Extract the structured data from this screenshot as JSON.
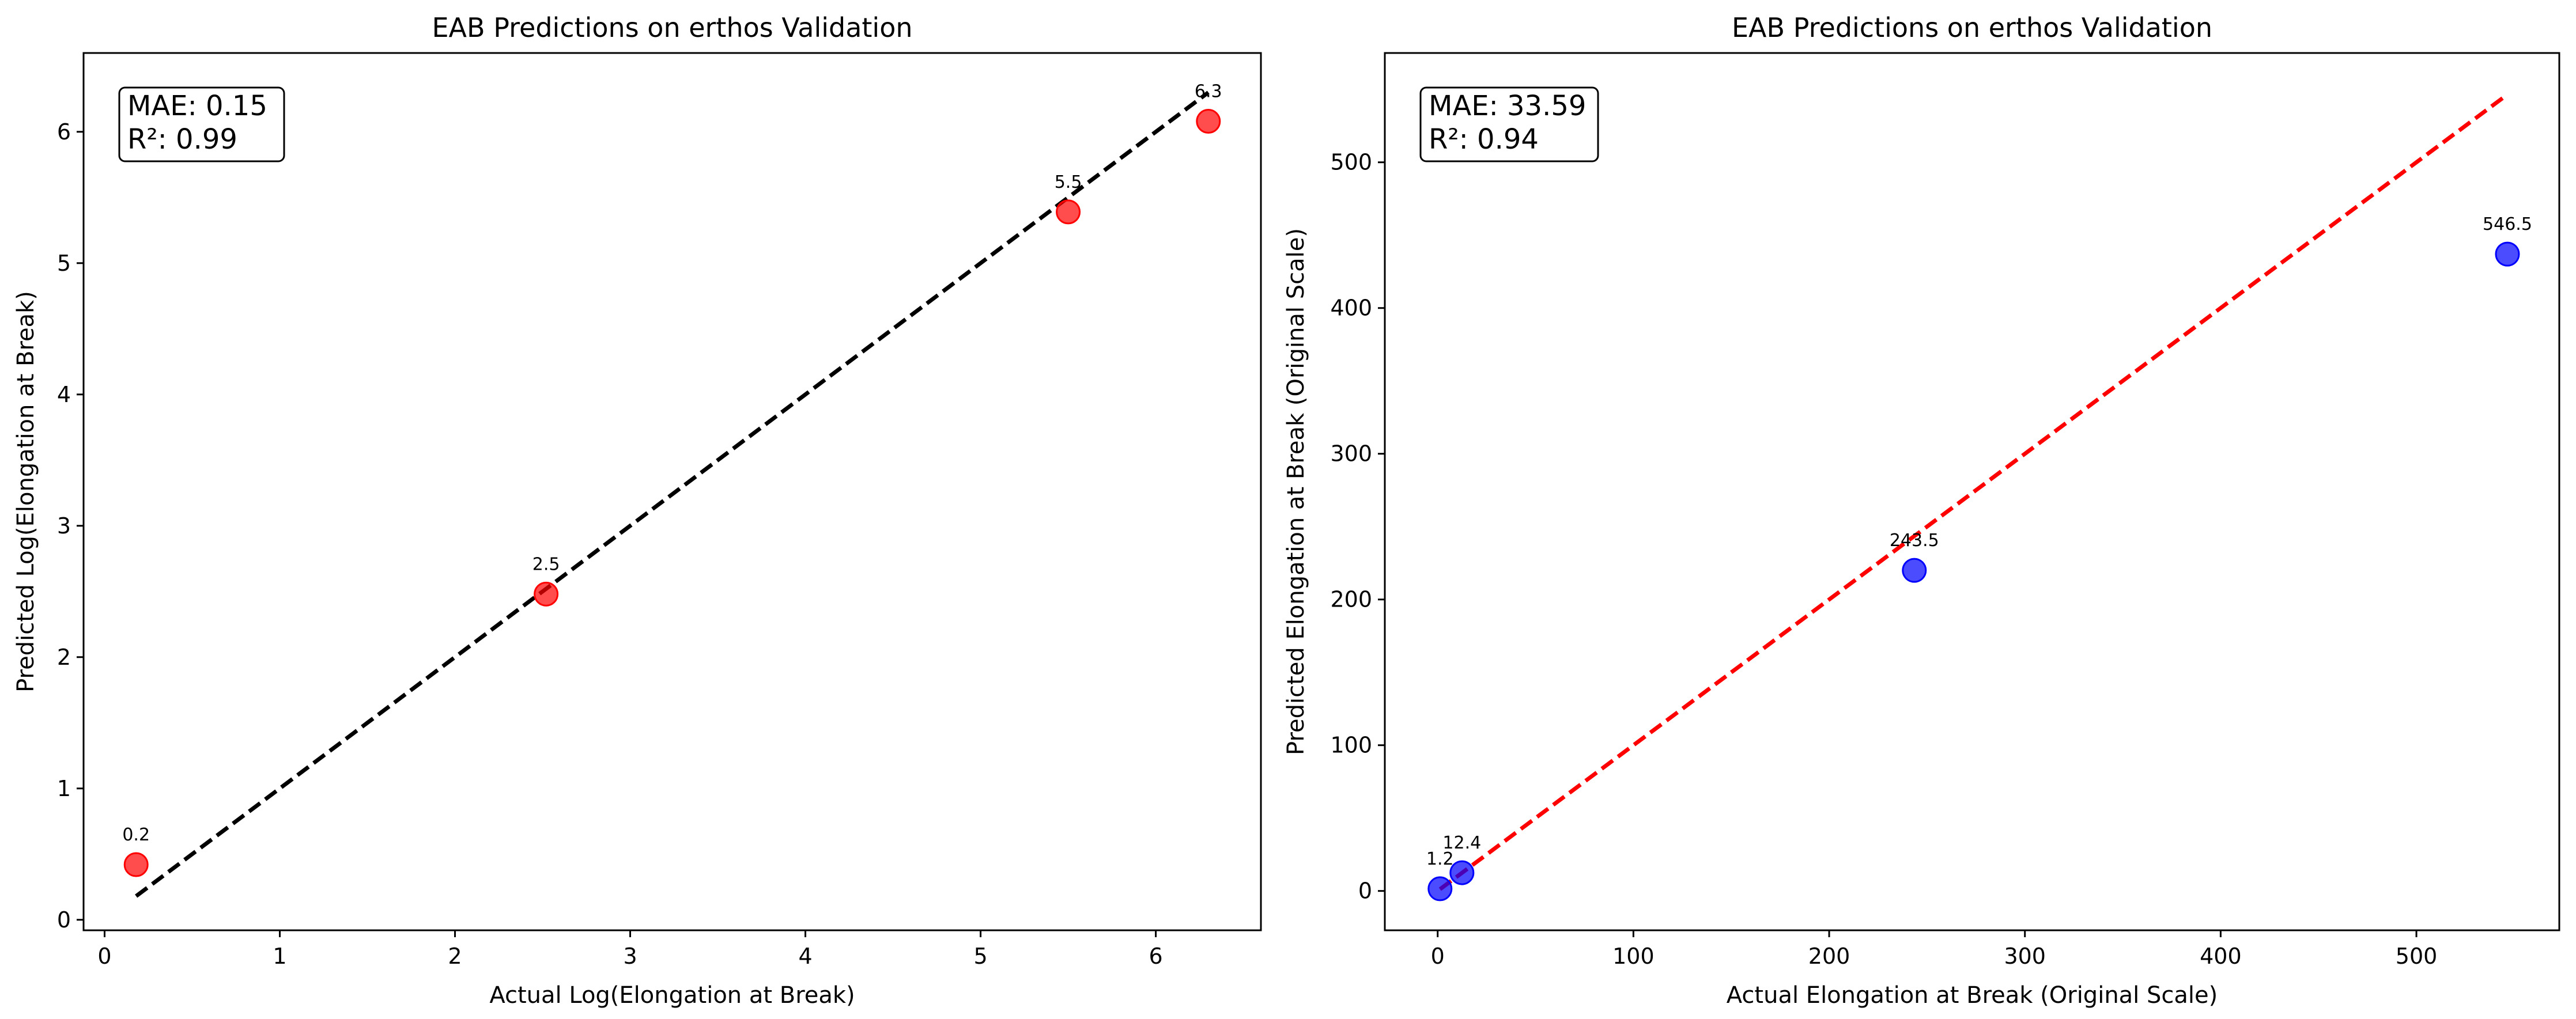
{
  "chart_data": [
    {
      "type": "scatter",
      "title": "EAB Predictions on erthos Validation",
      "xlabel": "Actual Log(Elongation at Break)",
      "ylabel": "Predicted Log(Elongation at Break)",
      "xlim": [
        -0.12,
        6.6
      ],
      "ylim": [
        -0.08,
        6.6
      ],
      "xticks": [
        0,
        1,
        2,
        3,
        4,
        5,
        6
      ],
      "yticks": [
        0,
        1,
        2,
        3,
        4,
        5,
        6
      ],
      "grid": false,
      "points": [
        {
          "x": 0.18,
          "y": 0.42,
          "label": "0.2"
        },
        {
          "x": 2.52,
          "y": 2.48,
          "label": "2.5"
        },
        {
          "x": 5.5,
          "y": 5.39,
          "label": "5.5"
        },
        {
          "x": 6.3,
          "y": 6.08,
          "label": "6.3"
        }
      ],
      "point_color": "#ff0000",
      "reference_line": {
        "from": [
          0.18,
          0.18
        ],
        "to": [
          6.3,
          6.3
        ],
        "color": "#000000",
        "style": "dashed"
      },
      "stats_box": {
        "mae": "MAE: 0.15",
        "r2": "R²: 0.99"
      }
    },
    {
      "type": "scatter",
      "title": "EAB Predictions on erthos Validation",
      "xlabel": "Actual Elongation at Break (Original Scale)",
      "ylabel": "Predicted Elongation at Break (Original Scale)",
      "xlim": [
        -27,
        573
      ],
      "ylim": [
        -27,
        575
      ],
      "xticks": [
        0,
        100,
        200,
        300,
        400,
        500
      ],
      "yticks": [
        0,
        100,
        200,
        300,
        400,
        500
      ],
      "grid": false,
      "points": [
        {
          "x": 1.2,
          "y": 1.5,
          "label": "1.2"
        },
        {
          "x": 12.4,
          "y": 12.5,
          "label": "12.4"
        },
        {
          "x": 243.5,
          "y": 220,
          "label": "243.5"
        },
        {
          "x": 546.5,
          "y": 437,
          "label": "546.5"
        }
      ],
      "point_color": "#0000ff",
      "reference_line": {
        "from": [
          1.2,
          1.2
        ],
        "to": [
          546.5,
          546.5
        ],
        "color": "#ff0000",
        "style": "dashed"
      },
      "stats_box": {
        "mae": "MAE: 33.59",
        "r2": "R²: 0.94"
      }
    }
  ]
}
